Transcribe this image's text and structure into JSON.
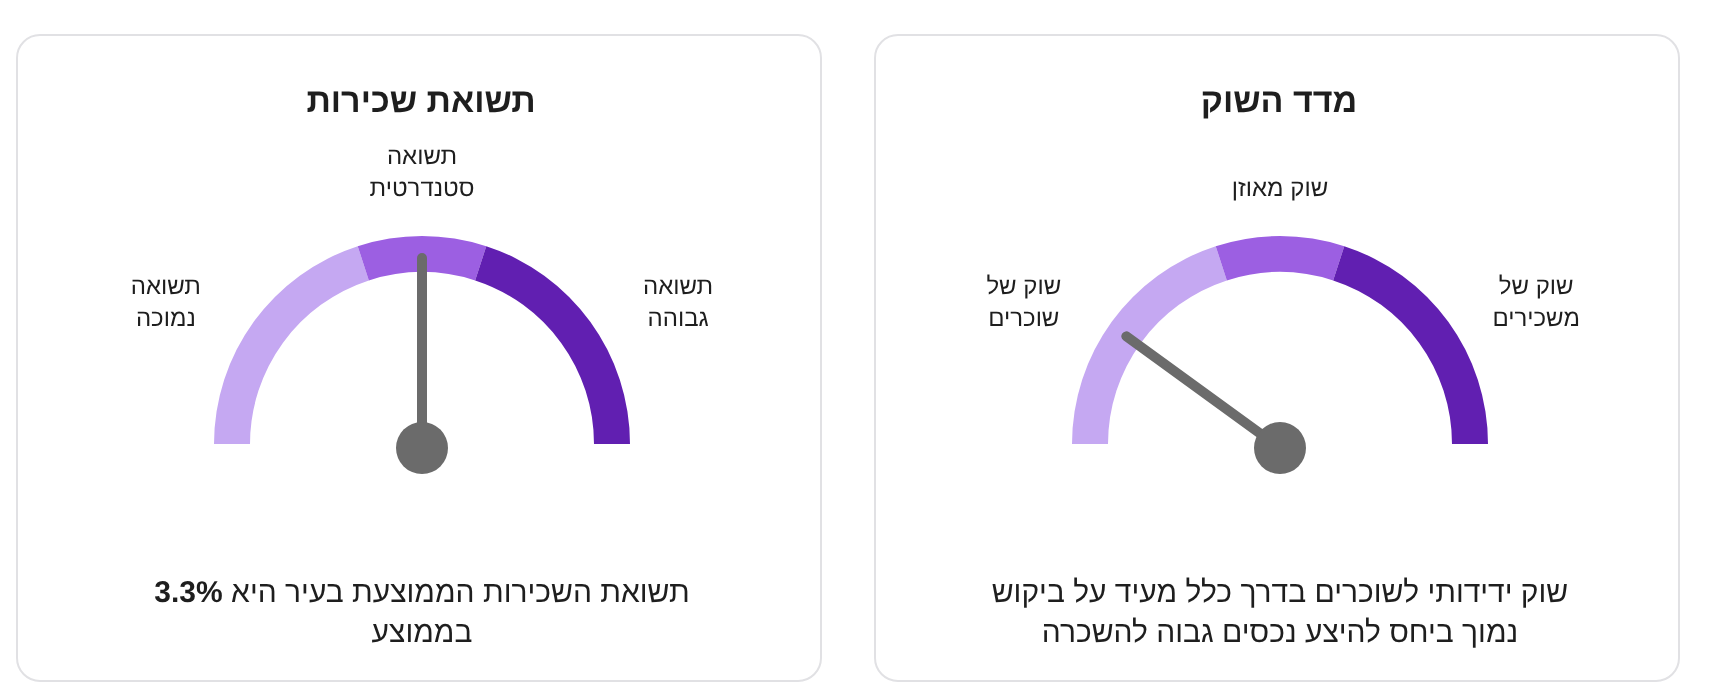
{
  "chart_data": [
    {
      "type": "donut",
      "title": "תשואת שכירות",
      "categories": [
        "תשואה נמוכה",
        "תשואה סטנדרטית",
        "תשואה גבוהה"
      ],
      "values": [
        40,
        20,
        40
      ],
      "colors": [
        "#c5a8f2",
        "#9c5fe2",
        "#611fb1"
      ],
      "needle": "תשואה סטנדרטית",
      "annotations": [
        "תשואת השכירות הממוצעת בעיר היא **3.3%** בממוצע"
      ]
    },
    {
      "type": "donut",
      "title": "מדד השוק",
      "categories": [
        "שוק של שוכרים",
        "שוק מאוזן",
        "שוק של משכירים"
      ],
      "values": [
        40,
        20,
        40
      ],
      "colors": [
        "#c5a8f2",
        "#9c5fe2",
        "#611fb1"
      ],
      "needle": "שוק של שוכרים",
      "annotations": [
        "שוק ידידותי לשוכרים בדרך כלל מעיד על ביקוש נמוך ביחס להיצע נכסים גבוה להשכרה"
      ]
    }
  ]
}
